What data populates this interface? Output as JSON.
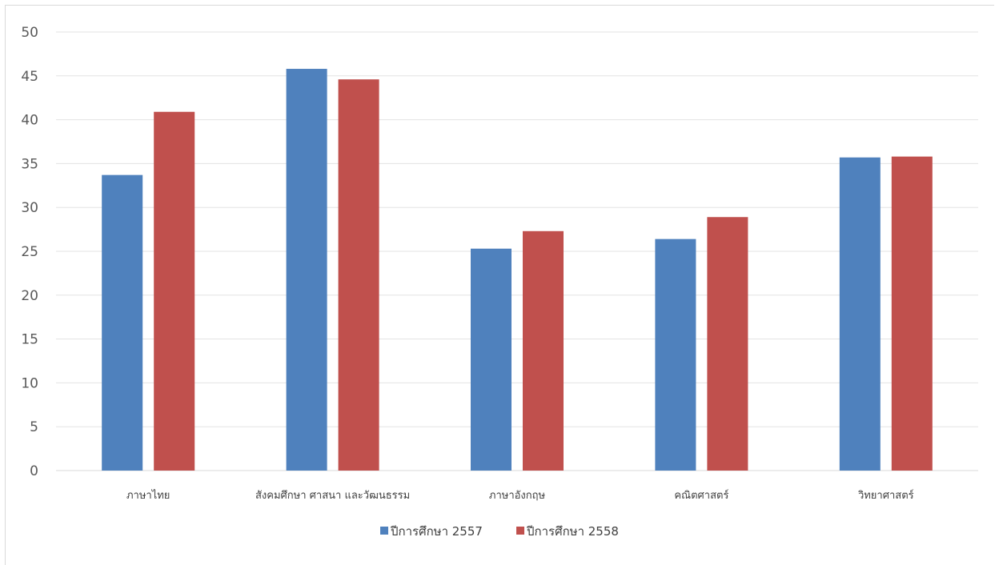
{
  "chart_data": {
    "type": "bar",
    "categories": [
      "ภาษาไทย",
      "สังคมศึกษา ศาสนา และวัฒนธรรม",
      "ภาษาอังกฤษ",
      "คณิตศาสตร์",
      "วิทยาศาสตร์"
    ],
    "series": [
      {
        "name": "ปีการศึกษา 2557",
        "color": "#4f81bd",
        "values": [
          33.7,
          45.8,
          25.3,
          26.4,
          35.7
        ]
      },
      {
        "name": "ปีการศึกษา 2558",
        "color": "#c0504d",
        "values": [
          40.9,
          44.6,
          27.3,
          28.9,
          35.8
        ]
      }
    ],
    "ylim": [
      0,
      50
    ],
    "yticks": [
      0,
      5,
      10,
      15,
      20,
      25,
      30,
      35,
      40,
      45,
      50
    ],
    "grid": true,
    "legend": "bottom"
  }
}
